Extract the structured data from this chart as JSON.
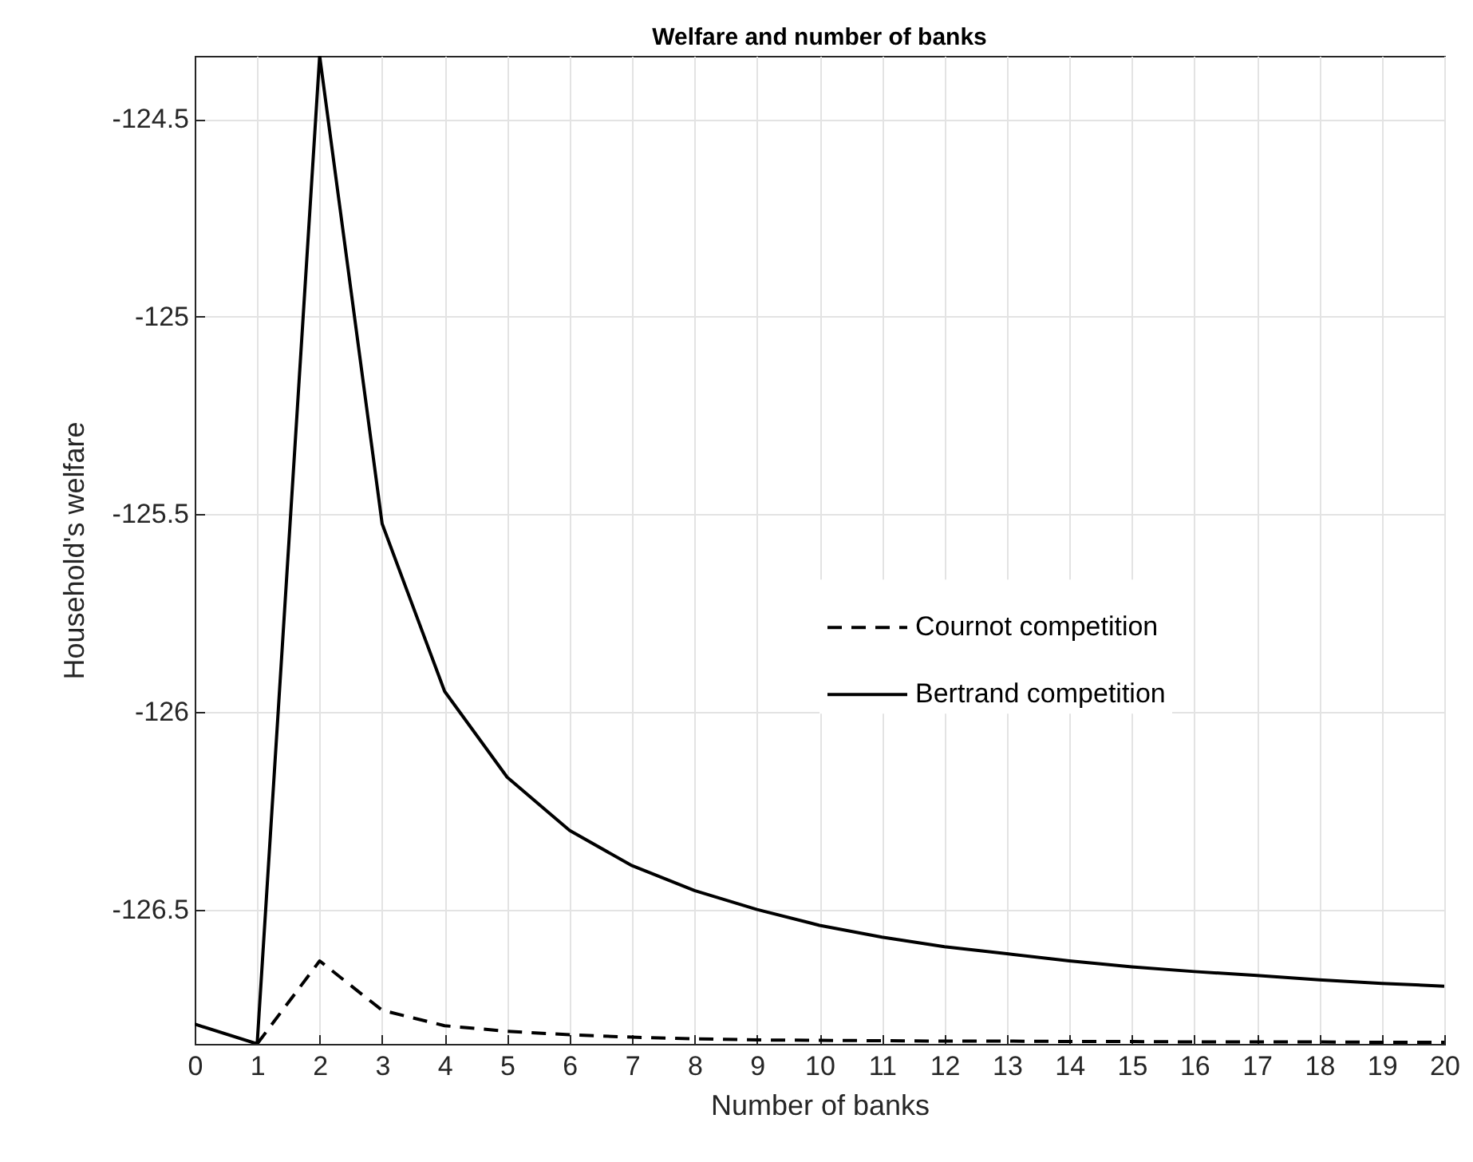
{
  "chart_data": {
    "type": "line",
    "title": "Welfare and number of banks",
    "xlabel": "Number of banks",
    "ylabel": "Household's welfare",
    "x": [
      0,
      1,
      2,
      3,
      4,
      5,
      6,
      7,
      8,
      9,
      10,
      11,
      12,
      13,
      14,
      15,
      16,
      17,
      18,
      19,
      20
    ],
    "series": [
      {
        "name": "Cournot competition",
        "color": "#000000",
        "line_style": "dashed",
        "values": [
          null,
          -126.84,
          -126.63,
          -126.755,
          -126.794,
          -126.808,
          -126.817,
          -126.823,
          -126.827,
          -126.83,
          -126.831,
          -126.832,
          -126.833,
          -126.833,
          -126.834,
          -126.834,
          -126.835,
          -126.835,
          -126.835,
          -126.836,
          -126.836
        ]
      },
      {
        "name": "Bertrand competition",
        "color": "#000000",
        "line_style": "solid",
        "values": [
          -126.79,
          -126.84,
          -124.34,
          -125.524,
          -125.948,
          -126.165,
          -126.3,
          -126.389,
          -126.452,
          -126.5,
          -126.54,
          -126.57,
          -126.594,
          -126.612,
          -126.63,
          -126.645,
          -126.657,
          -126.667,
          -126.678,
          -126.687,
          -126.694
        ]
      }
    ],
    "xlim": [
      0,
      20
    ],
    "xticks": [
      0,
      1,
      2,
      3,
      4,
      5,
      6,
      7,
      8,
      9,
      10,
      11,
      12,
      13,
      14,
      15,
      16,
      17,
      18,
      19,
      20
    ],
    "ylim": [
      -126.84,
      -124.34
    ],
    "yticks": [
      {
        "value": -126.5,
        "label": "-126.5"
      },
      {
        "value": -126,
        "label": "-126"
      },
      {
        "value": -125.5,
        "label": "-125.5"
      },
      {
        "value": -125,
        "label": "-125"
      },
      {
        "value": -124.5,
        "label": "-124.5"
      }
    ],
    "grid": true,
    "legend": "right",
    "marker": "none"
  }
}
